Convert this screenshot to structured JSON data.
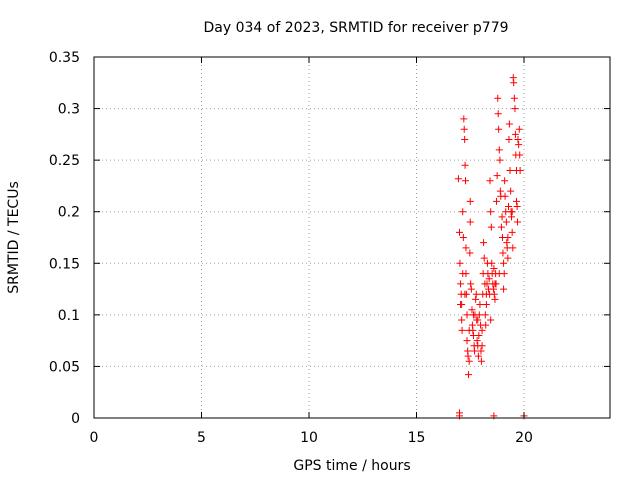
{
  "chart_data": {
    "type": "scatter",
    "title": "Day 034 of 2023, SRMTID for receiver p779",
    "xlabel": "GPS time / hours",
    "ylabel": "SRMTID / TECUs",
    "xlim": [
      0,
      24
    ],
    "ylim": [
      0,
      0.35
    ],
    "xticks": [
      0,
      5,
      10,
      15,
      20
    ],
    "xtick_labels": [
      "0",
      "5",
      "10",
      "15",
      "20"
    ],
    "yticks": [
      0,
      0.05,
      0.1,
      0.15,
      0.2,
      0.25,
      0.3,
      0.35
    ],
    "ytick_labels": [
      "0",
      "0.05",
      "0.1",
      "0.15",
      "0.2",
      "0.25",
      "0.3",
      "0.35"
    ],
    "grid": true,
    "marker": "+",
    "color": "#ff0000",
    "series": [
      {
        "name": "SRMTID",
        "points": [
          [
            16.95,
            0.232
          ],
          [
            17.0,
            0.18
          ],
          [
            17.02,
            0.15
          ],
          [
            17.05,
            0.13
          ],
          [
            17.08,
            0.12
          ],
          [
            17.1,
            0.11
          ],
          [
            17.1,
            0.095
          ],
          [
            17.12,
            0.085
          ],
          [
            17.15,
            0.2
          ],
          [
            17.18,
            0.175
          ],
          [
            17.2,
            0.29
          ],
          [
            17.22,
            0.28
          ],
          [
            17.24,
            0.27
          ],
          [
            17.26,
            0.245
          ],
          [
            17.28,
            0.23
          ],
          [
            17.3,
            0.165
          ],
          [
            17.3,
            0.14
          ],
          [
            17.32,
            0.12
          ],
          [
            17.35,
            0.1
          ],
          [
            17.35,
            0.075
          ],
          [
            17.38,
            0.065
          ],
          [
            17.4,
            0.06
          ],
          [
            17.42,
            0.042
          ],
          [
            17.45,
            0.055
          ],
          [
            17.48,
            0.16
          ],
          [
            17.5,
            0.21
          ],
          [
            17.5,
            0.19
          ],
          [
            17.52,
            0.13
          ],
          [
            17.55,
            0.125
          ],
          [
            17.58,
            0.105
          ],
          [
            17.6,
            0.09
          ],
          [
            17.62,
            0.085
          ],
          [
            17.65,
            0.08
          ],
          [
            17.68,
            0.07
          ],
          [
            17.7,
            0.065
          ],
          [
            17.72,
            0.1
          ],
          [
            17.75,
            0.115
          ],
          [
            17.78,
            0.12
          ],
          [
            17.8,
            0.095
          ],
          [
            17.82,
            0.075
          ],
          [
            17.85,
            0.07
          ],
          [
            17.88,
            0.06
          ],
          [
            17.9,
            0.08
          ],
          [
            17.92,
            0.1
          ],
          [
            17.95,
            0.11
          ],
          [
            17.98,
            0.09
          ],
          [
            18.0,
            0.065
          ],
          [
            18.02,
            0.055
          ],
          [
            18.05,
            0.07
          ],
          [
            18.08,
            0.12
          ],
          [
            18.1,
            0.14
          ],
          [
            18.12,
            0.17
          ],
          [
            18.15,
            0.155
          ],
          [
            18.18,
            0.13
          ],
          [
            18.2,
            0.1
          ],
          [
            18.22,
            0.09
          ],
          [
            18.25,
            0.11
          ],
          [
            18.28,
            0.13
          ],
          [
            18.3,
            0.15
          ],
          [
            18.32,
            0.14
          ],
          [
            18.35,
            0.125
          ],
          [
            18.38,
            0.135
          ],
          [
            18.4,
            0.12
          ],
          [
            18.42,
            0.23
          ],
          [
            18.45,
            0.2
          ],
          [
            18.48,
            0.185
          ],
          [
            18.5,
            0.15
          ],
          [
            18.52,
            0.14
          ],
          [
            18.55,
            0.13
          ],
          [
            18.58,
            0.125
          ],
          [
            18.6,
            0.145
          ],
          [
            18.62,
            0.12
          ],
          [
            18.65,
            0.115
          ],
          [
            18.68,
            0.14
          ],
          [
            18.7,
            0.13
          ],
          [
            18.72,
            0.21
          ],
          [
            18.75,
            0.235
          ],
          [
            18.78,
            0.31
          ],
          [
            18.8,
            0.295
          ],
          [
            18.82,
            0.28
          ],
          [
            18.85,
            0.26
          ],
          [
            18.88,
            0.25
          ],
          [
            18.9,
            0.22
          ],
          [
            18.92,
            0.215
          ],
          [
            18.95,
            0.185
          ],
          [
            18.98,
            0.195
          ],
          [
            19.0,
            0.175
          ],
          [
            19.02,
            0.16
          ],
          [
            19.05,
            0.15
          ],
          [
            19.08,
            0.14
          ],
          [
            19.1,
            0.23
          ],
          [
            19.12,
            0.215
          ],
          [
            19.15,
            0.2
          ],
          [
            19.18,
            0.19
          ],
          [
            19.2,
            0.17
          ],
          [
            19.22,
            0.165
          ],
          [
            19.25,
            0.155
          ],
          [
            19.28,
            0.205
          ],
          [
            19.3,
            0.27
          ],
          [
            19.32,
            0.285
          ],
          [
            19.35,
            0.24
          ],
          [
            19.38,
            0.22
          ],
          [
            19.4,
            0.2
          ],
          [
            19.42,
            0.195
          ],
          [
            19.45,
            0.18
          ],
          [
            19.48,
            0.165
          ],
          [
            19.5,
            0.33
          ],
          [
            19.52,
            0.325
          ],
          [
            19.55,
            0.31
          ],
          [
            19.58,
            0.3
          ],
          [
            19.6,
            0.275
          ],
          [
            19.62,
            0.255
          ],
          [
            19.65,
            0.24
          ],
          [
            19.68,
            0.205
          ],
          [
            19.7,
            0.19
          ],
          [
            19.72,
            0.27
          ],
          [
            19.75,
            0.265
          ],
          [
            19.78,
            0.28
          ],
          [
            19.8,
            0.255
          ],
          [
            19.82,
            0.24
          ],
          [
            17.05,
            0.11
          ],
          [
            17.15,
            0.14
          ],
          [
            17.25,
            0.12
          ],
          [
            17.45,
            0.085
          ],
          [
            17.65,
            0.1
          ],
          [
            17.85,
            0.095
          ],
          [
            18.05,
            0.085
          ],
          [
            18.25,
            0.12
          ],
          [
            18.45,
            0.095
          ],
          [
            18.65,
            0.13
          ],
          [
            18.85,
            0.14
          ],
          [
            19.05,
            0.125
          ],
          [
            19.25,
            0.175
          ],
          [
            19.45,
            0.2
          ],
          [
            19.65,
            0.21
          ],
          [
            17.0,
            0.005
          ],
          [
            17.0,
            0.002
          ],
          [
            18.6,
            0.002
          ],
          [
            20.0,
            0.002
          ]
        ]
      }
    ]
  }
}
